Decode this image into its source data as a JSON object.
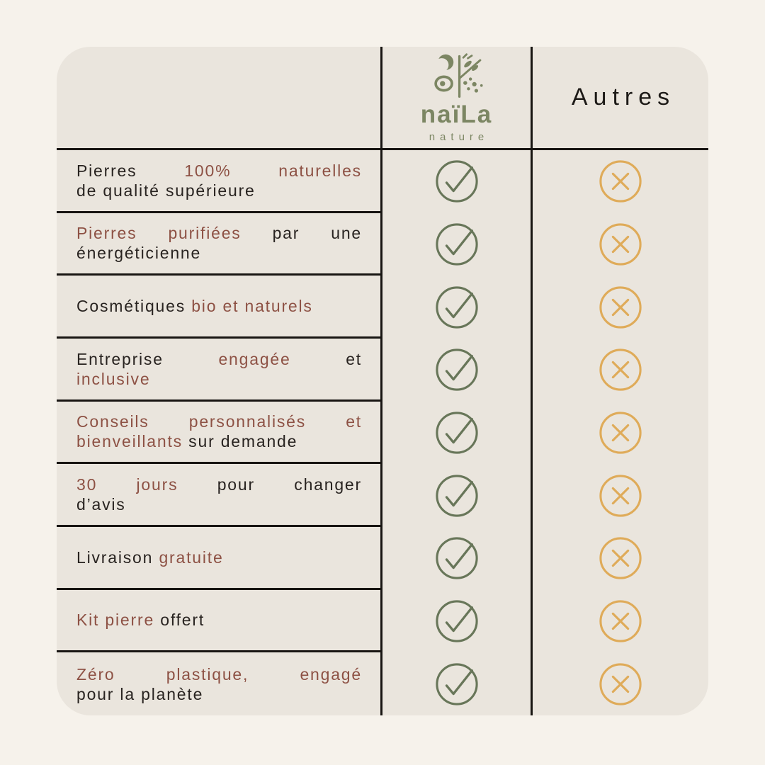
{
  "brand": {
    "name": "naïLa",
    "tagline": "nature"
  },
  "header": {
    "competitor_label": "Autres"
  },
  "colors": {
    "page_bg": "#f6f2eb",
    "card_bg": "#eae5dd",
    "rule_line": "#181512",
    "text": "#282320",
    "accent_text": "#8d5144",
    "check": "#687659",
    "cross": "#dfab59",
    "logo_green": "#7c8663"
  },
  "icons": {
    "check": "check-circle-icon",
    "cross": "cross-circle-icon",
    "logo": "naila-logo-icon"
  },
  "table": {
    "rows": [
      {
        "naila": "check",
        "autres": "cross",
        "lines": [
          [
            {
              "text": "Pierres ",
              "accent": false
            },
            {
              "text": "100% naturelles",
              "accent": true
            }
          ],
          [
            {
              "text": "de qualité supérieure",
              "accent": false
            }
          ]
        ]
      },
      {
        "naila": "check",
        "autres": "cross",
        "lines": [
          [
            {
              "text": "Pierres purifiées",
              "accent": true
            },
            {
              "text": " par une",
              "accent": false
            }
          ],
          [
            {
              "text": "énergéticienne",
              "accent": false
            }
          ]
        ]
      },
      {
        "naila": "check",
        "autres": "cross",
        "lines": [
          [
            {
              "text": "Cosmétiques ",
              "accent": false
            },
            {
              "text": "bio et naturels",
              "accent": true
            }
          ]
        ]
      },
      {
        "naila": "check",
        "autres": "cross",
        "lines": [
          [
            {
              "text": "Entreprise ",
              "accent": false
            },
            {
              "text": "engagée",
              "accent": true
            },
            {
              "text": " et",
              "accent": false
            }
          ],
          [
            {
              "text": "inclusive",
              "accent": true
            }
          ]
        ]
      },
      {
        "naila": "check",
        "autres": "cross",
        "lines": [
          [
            {
              "text": "Conseils personnalisés et",
              "accent": true
            }
          ],
          [
            {
              "text": "bienveillants",
              "accent": true
            },
            {
              "text": " sur demande",
              "accent": false
            }
          ]
        ]
      },
      {
        "naila": "check",
        "autres": "cross",
        "lines": [
          [
            {
              "text": "30 jours",
              "accent": true
            },
            {
              "text": " pour changer",
              "accent": false
            }
          ],
          [
            {
              "text": "d’avis",
              "accent": false
            }
          ]
        ]
      },
      {
        "naila": "check",
        "autres": "cross",
        "lines": [
          [
            {
              "text": "Livraison ",
              "accent": false
            },
            {
              "text": "gratuite",
              "accent": true
            }
          ]
        ]
      },
      {
        "naila": "check",
        "autres": "cross",
        "lines": [
          [
            {
              "text": "Kit pierre",
              "accent": true
            },
            {
              "text": " offert",
              "accent": false
            }
          ]
        ]
      },
      {
        "naila": "check",
        "autres": "cross",
        "lines": [
          [
            {
              "text": "Zéro plastique, engagé",
              "accent": true
            }
          ],
          [
            {
              "text": "pour la planète",
              "accent": false
            }
          ]
        ]
      }
    ]
  }
}
